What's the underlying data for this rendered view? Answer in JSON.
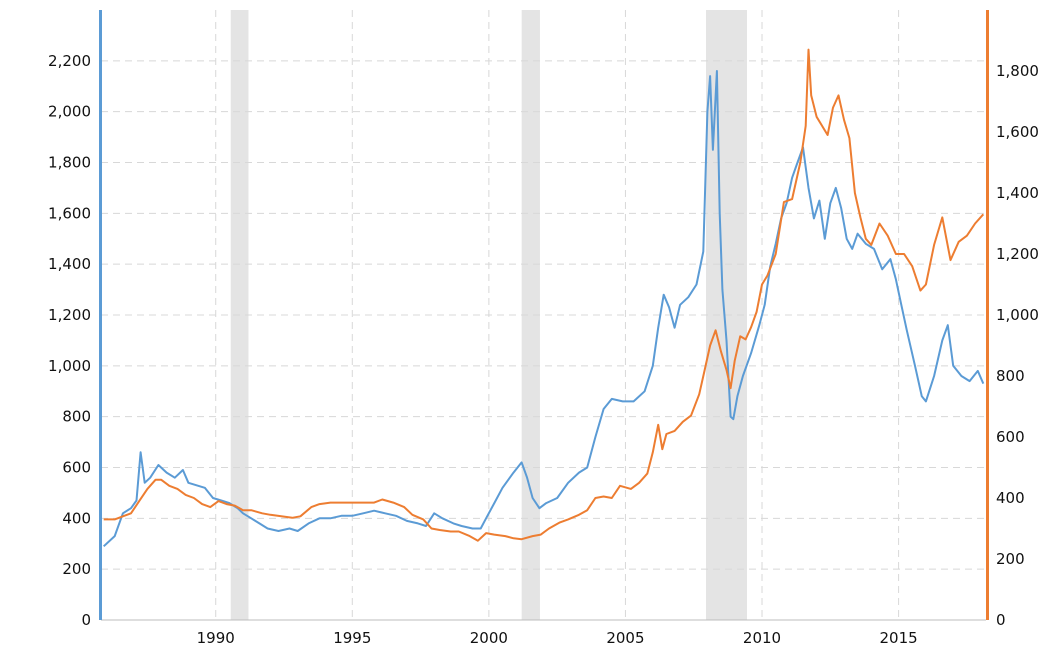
{
  "chart_data": {
    "type": "line",
    "title": "",
    "xlabel": "",
    "ylabel_left": "",
    "ylabel_right": "",
    "xlim": [
      1985.8,
      2018.2
    ],
    "ylim_left": [
      0,
      2400
    ],
    "ylim_right": [
      0,
      2000
    ],
    "x_ticks": [
      1990,
      1995,
      2000,
      2005,
      2010,
      2015
    ],
    "y_left_ticks": [
      0,
      200,
      400,
      600,
      800,
      1000,
      1200,
      1400,
      1600,
      1800,
      2000,
      2200
    ],
    "y_right_ticks": [
      0,
      200,
      400,
      600,
      800,
      1000,
      1200,
      1400,
      1600,
      1800
    ],
    "grid": true,
    "legend": "none",
    "shaded_periods": [
      {
        "start": 1990.55,
        "end": 1991.2
      },
      {
        "start": 2001.2,
        "end": 2001.87
      },
      {
        "start": 2007.95,
        "end": 2009.45
      }
    ],
    "series": [
      {
        "axis": "left",
        "color": "#5b9bd5",
        "points": [
          [
            1985.9,
            290
          ],
          [
            1986.3,
            330
          ],
          [
            1986.6,
            420
          ],
          [
            1986.9,
            440
          ],
          [
            1987.1,
            470
          ],
          [
            1987.25,
            660
          ],
          [
            1987.4,
            540
          ],
          [
            1987.6,
            560
          ],
          [
            1987.9,
            610
          ],
          [
            1988.2,
            580
          ],
          [
            1988.5,
            560
          ],
          [
            1988.8,
            590
          ],
          [
            1989.0,
            540
          ],
          [
            1989.3,
            530
          ],
          [
            1989.6,
            520
          ],
          [
            1989.9,
            480
          ],
          [
            1990.2,
            470
          ],
          [
            1990.5,
            460
          ],
          [
            1990.8,
            440
          ],
          [
            1991.0,
            420
          ],
          [
            1991.3,
            400
          ],
          [
            1991.6,
            380
          ],
          [
            1991.9,
            360
          ],
          [
            1992.3,
            350
          ],
          [
            1992.7,
            360
          ],
          [
            1993.0,
            350
          ],
          [
            1993.4,
            380
          ],
          [
            1993.8,
            400
          ],
          [
            1994.2,
            400
          ],
          [
            1994.6,
            410
          ],
          [
            1995.0,
            410
          ],
          [
            1995.4,
            420
          ],
          [
            1995.8,
            430
          ],
          [
            1996.2,
            420
          ],
          [
            1996.6,
            410
          ],
          [
            1997.0,
            390
          ],
          [
            1997.4,
            380
          ],
          [
            1997.7,
            370
          ],
          [
            1998.0,
            420
          ],
          [
            1998.3,
            400
          ],
          [
            1998.7,
            380
          ],
          [
            1999.0,
            370
          ],
          [
            1999.4,
            360
          ],
          [
            1999.7,
            360
          ],
          [
            1999.9,
            400
          ],
          [
            2000.2,
            460
          ],
          [
            2000.5,
            520
          ],
          [
            2000.9,
            580
          ],
          [
            2001.2,
            620
          ],
          [
            2001.4,
            560
          ],
          [
            2001.6,
            480
          ],
          [
            2001.85,
            440
          ],
          [
            2002.1,
            460
          ],
          [
            2002.5,
            480
          ],
          [
            2002.9,
            540
          ],
          [
            2003.3,
            580
          ],
          [
            2003.6,
            600
          ],
          [
            2003.9,
            720
          ],
          [
            2004.2,
            830
          ],
          [
            2004.5,
            870
          ],
          [
            2004.9,
            860
          ],
          [
            2005.3,
            860
          ],
          [
            2005.7,
            900
          ],
          [
            2006.0,
            1000
          ],
          [
            2006.2,
            1150
          ],
          [
            2006.4,
            1280
          ],
          [
            2006.6,
            1230
          ],
          [
            2006.8,
            1150
          ],
          [
            2007.0,
            1240
          ],
          [
            2007.3,
            1270
          ],
          [
            2007.6,
            1320
          ],
          [
            2007.85,
            1450
          ],
          [
            2008.0,
            2000
          ],
          [
            2008.1,
            2140
          ],
          [
            2008.2,
            1850
          ],
          [
            2008.35,
            2160
          ],
          [
            2008.45,
            1600
          ],
          [
            2008.55,
            1300
          ],
          [
            2008.7,
            1100
          ],
          [
            2008.85,
            800
          ],
          [
            2008.95,
            790
          ],
          [
            2009.1,
            880
          ],
          [
            2009.3,
            960
          ],
          [
            2009.6,
            1050
          ],
          [
            2009.9,
            1160
          ],
          [
            2010.1,
            1240
          ],
          [
            2010.3,
            1390
          ],
          [
            2010.5,
            1480
          ],
          [
            2010.7,
            1580
          ],
          [
            2010.9,
            1640
          ],
          [
            2011.1,
            1740
          ],
          [
            2011.3,
            1800
          ],
          [
            2011.5,
            1860
          ],
          [
            2011.7,
            1700
          ],
          [
            2011.9,
            1580
          ],
          [
            2012.1,
            1650
          ],
          [
            2012.3,
            1500
          ],
          [
            2012.5,
            1640
          ],
          [
            2012.7,
            1700
          ],
          [
            2012.9,
            1620
          ],
          [
            2013.1,
            1500
          ],
          [
            2013.3,
            1460
          ],
          [
            2013.5,
            1520
          ],
          [
            2013.8,
            1480
          ],
          [
            2014.1,
            1460
          ],
          [
            2014.4,
            1380
          ],
          [
            2014.7,
            1420
          ],
          [
            2014.9,
            1340
          ],
          [
            2015.1,
            1240
          ],
          [
            2015.3,
            1140
          ],
          [
            2015.6,
            1000
          ],
          [
            2015.85,
            880
          ],
          [
            2016.0,
            860
          ],
          [
            2016.3,
            960
          ],
          [
            2016.6,
            1100
          ],
          [
            2016.8,
            1160
          ],
          [
            2017.0,
            1000
          ],
          [
            2017.3,
            960
          ],
          [
            2017.6,
            940
          ],
          [
            2017.9,
            980
          ],
          [
            2018.1,
            930
          ]
        ]
      },
      {
        "axis": "right",
        "color": "#ed7d31",
        "points": [
          [
            1985.9,
            330
          ],
          [
            1986.3,
            330
          ],
          [
            1986.6,
            340
          ],
          [
            1986.9,
            350
          ],
          [
            1987.2,
            390
          ],
          [
            1987.5,
            430
          ],
          [
            1987.8,
            460
          ],
          [
            1988.0,
            460
          ],
          [
            1988.3,
            440
          ],
          [
            1988.6,
            430
          ],
          [
            1988.9,
            410
          ],
          [
            1989.2,
            400
          ],
          [
            1989.5,
            380
          ],
          [
            1989.8,
            370
          ],
          [
            1990.1,
            390
          ],
          [
            1990.4,
            380
          ],
          [
            1990.7,
            375
          ],
          [
            1991.0,
            360
          ],
          [
            1991.3,
            360
          ],
          [
            1991.7,
            350
          ],
          [
            1992.0,
            345
          ],
          [
            1992.4,
            340
          ],
          [
            1992.8,
            335
          ],
          [
            1993.1,
            340
          ],
          [
            1993.5,
            370
          ],
          [
            1993.8,
            380
          ],
          [
            1994.2,
            385
          ],
          [
            1994.6,
            385
          ],
          [
            1995.0,
            385
          ],
          [
            1995.4,
            385
          ],
          [
            1995.8,
            385
          ],
          [
            1996.1,
            395
          ],
          [
            1996.5,
            385
          ],
          [
            1996.9,
            370
          ],
          [
            1997.2,
            345
          ],
          [
            1997.6,
            330
          ],
          [
            1997.9,
            300
          ],
          [
            1998.2,
            295
          ],
          [
            1998.6,
            290
          ],
          [
            1998.9,
            290
          ],
          [
            1999.3,
            275
          ],
          [
            1999.6,
            260
          ],
          [
            1999.9,
            285
          ],
          [
            2000.2,
            280
          ],
          [
            2000.6,
            275
          ],
          [
            2000.9,
            268
          ],
          [
            2001.2,
            265
          ],
          [
            2001.6,
            275
          ],
          [
            2001.9,
            280
          ],
          [
            2002.2,
            300
          ],
          [
            2002.6,
            320
          ],
          [
            2002.9,
            330
          ],
          [
            2003.3,
            345
          ],
          [
            2003.6,
            360
          ],
          [
            2003.9,
            400
          ],
          [
            2004.2,
            405
          ],
          [
            2004.5,
            400
          ],
          [
            2004.8,
            440
          ],
          [
            2005.2,
            430
          ],
          [
            2005.5,
            450
          ],
          [
            2005.8,
            480
          ],
          [
            2006.0,
            550
          ],
          [
            2006.2,
            640
          ],
          [
            2006.35,
            560
          ],
          [
            2006.5,
            610
          ],
          [
            2006.8,
            620
          ],
          [
            2007.1,
            650
          ],
          [
            2007.4,
            670
          ],
          [
            2007.7,
            740
          ],
          [
            2007.9,
            820
          ],
          [
            2008.1,
            900
          ],
          [
            2008.3,
            950
          ],
          [
            2008.5,
            880
          ],
          [
            2008.7,
            820
          ],
          [
            2008.85,
            760
          ],
          [
            2009.0,
            850
          ],
          [
            2009.2,
            930
          ],
          [
            2009.4,
            920
          ],
          [
            2009.6,
            960
          ],
          [
            2009.8,
            1010
          ],
          [
            2010.0,
            1100
          ],
          [
            2010.2,
            1130
          ],
          [
            2010.5,
            1200
          ],
          [
            2010.8,
            1370
          ],
          [
            2011.1,
            1380
          ],
          [
            2011.4,
            1500
          ],
          [
            2011.6,
            1620
          ],
          [
            2011.7,
            1870
          ],
          [
            2011.8,
            1720
          ],
          [
            2012.0,
            1650
          ],
          [
            2012.2,
            1620
          ],
          [
            2012.4,
            1590
          ],
          [
            2012.6,
            1680
          ],
          [
            2012.8,
            1720
          ],
          [
            2013.0,
            1640
          ],
          [
            2013.2,
            1580
          ],
          [
            2013.4,
            1400
          ],
          [
            2013.6,
            1320
          ],
          [
            2013.8,
            1250
          ],
          [
            2014.0,
            1230
          ],
          [
            2014.3,
            1300
          ],
          [
            2014.6,
            1260
          ],
          [
            2014.9,
            1200
          ],
          [
            2015.2,
            1200
          ],
          [
            2015.5,
            1160
          ],
          [
            2015.8,
            1080
          ],
          [
            2016.0,
            1100
          ],
          [
            2016.3,
            1230
          ],
          [
            2016.6,
            1320
          ],
          [
            2016.9,
            1180
          ],
          [
            2017.2,
            1240
          ],
          [
            2017.5,
            1260
          ],
          [
            2017.8,
            1300
          ],
          [
            2018.1,
            1330
          ]
        ]
      }
    ]
  }
}
